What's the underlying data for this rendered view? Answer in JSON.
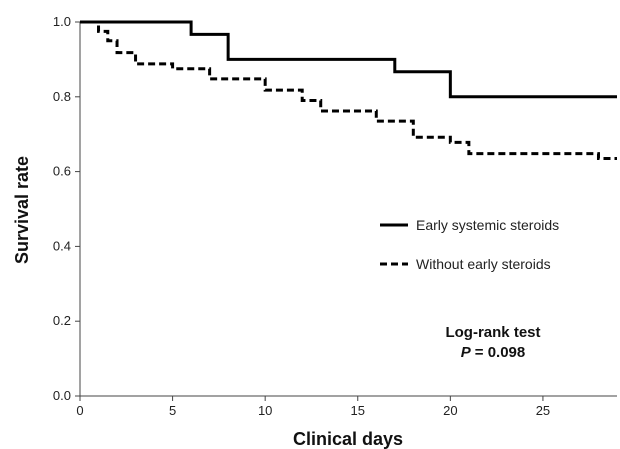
{
  "chart_data": {
    "type": "line",
    "step": true,
    "title": "",
    "xlabel": "Clinical days",
    "ylabel": "Survival rate",
    "xlim": [
      0,
      29
    ],
    "ylim": [
      0,
      1.0
    ],
    "x_ticks": [
      0,
      5,
      10,
      15,
      20,
      25
    ],
    "y_ticks": [
      "0.0",
      "0.2",
      "0.4",
      "0.6",
      "0.8",
      "1.0"
    ],
    "grid": false,
    "legend_position": "right",
    "series": [
      {
        "name": "Early systemic steroids",
        "style": "solid",
        "color": "#000000",
        "points": [
          [
            0,
            1.0
          ],
          [
            6,
            0.967
          ],
          [
            8,
            0.9
          ],
          [
            17,
            0.867
          ],
          [
            20,
            0.8
          ],
          [
            29,
            0.8
          ]
        ]
      },
      {
        "name": "Without early steroids",
        "style": "dashed",
        "color": "#000000",
        "points": [
          [
            0,
            1.0
          ],
          [
            1,
            0.975
          ],
          [
            1.5,
            0.95
          ],
          [
            2,
            0.918
          ],
          [
            3,
            0.888
          ],
          [
            5,
            0.875
          ],
          [
            7,
            0.848
          ],
          [
            10,
            0.818
          ],
          [
            12,
            0.79
          ],
          [
            13,
            0.762
          ],
          [
            16,
            0.735
          ],
          [
            18,
            0.692
          ],
          [
            20,
            0.678
          ],
          [
            21,
            0.648
          ],
          [
            28,
            0.635
          ],
          [
            29,
            0.635
          ]
        ]
      }
    ],
    "annotation": {
      "line1": "Log-rank test",
      "p_label": "P",
      "p_value": "= 0.098"
    }
  }
}
